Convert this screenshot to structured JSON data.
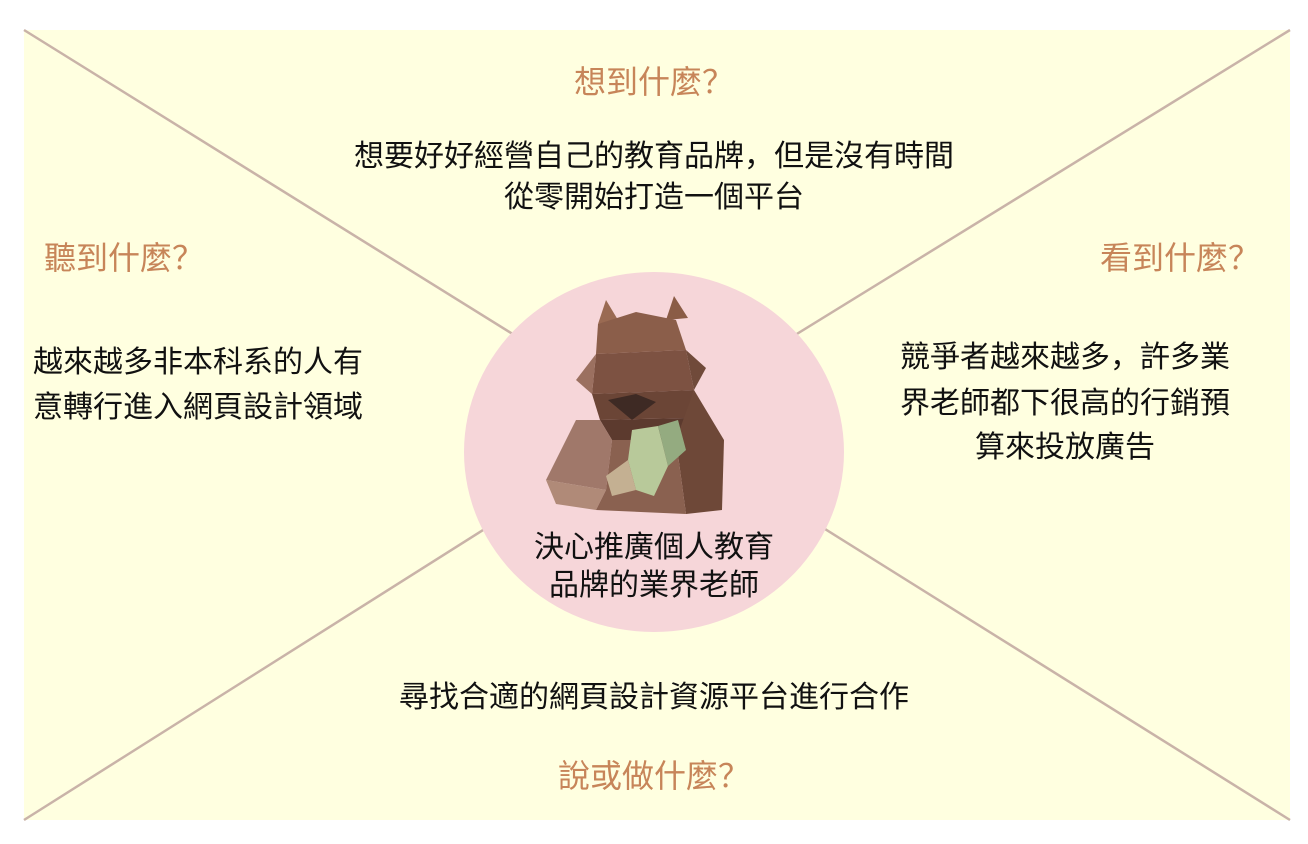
{
  "labels": {
    "think": "想到什麼？",
    "hear": "聽到什麼？",
    "see": "看到什麼？",
    "say_do": "說或做什麼？"
  },
  "answers": {
    "think_line1": "想要好好經營自己的教育品牌，但是沒有時間",
    "think_line2": "從零開始打造一個平台",
    "hear_line1": "越來越多非本科系的人有",
    "hear_line2": "意轉行進入網頁設計領域",
    "see_line1": "競爭者越來越多，許多業",
    "see_line2": "界老師都下很高的行銷預",
    "see_line3": "算來投放廣告",
    "say_do_line1": "尋找合適的網頁設計資源平台進行合作"
  },
  "persona": {
    "line1": "決心推廣個人教育",
    "line2": "品牌的業界老師",
    "avatar_icon": "capybara-icon"
  },
  "colors": {
    "background": "#ffffe0",
    "divider": "#c9b3a8",
    "circle": "#f6d6d9",
    "question": "#c78559",
    "text": "#111111"
  }
}
